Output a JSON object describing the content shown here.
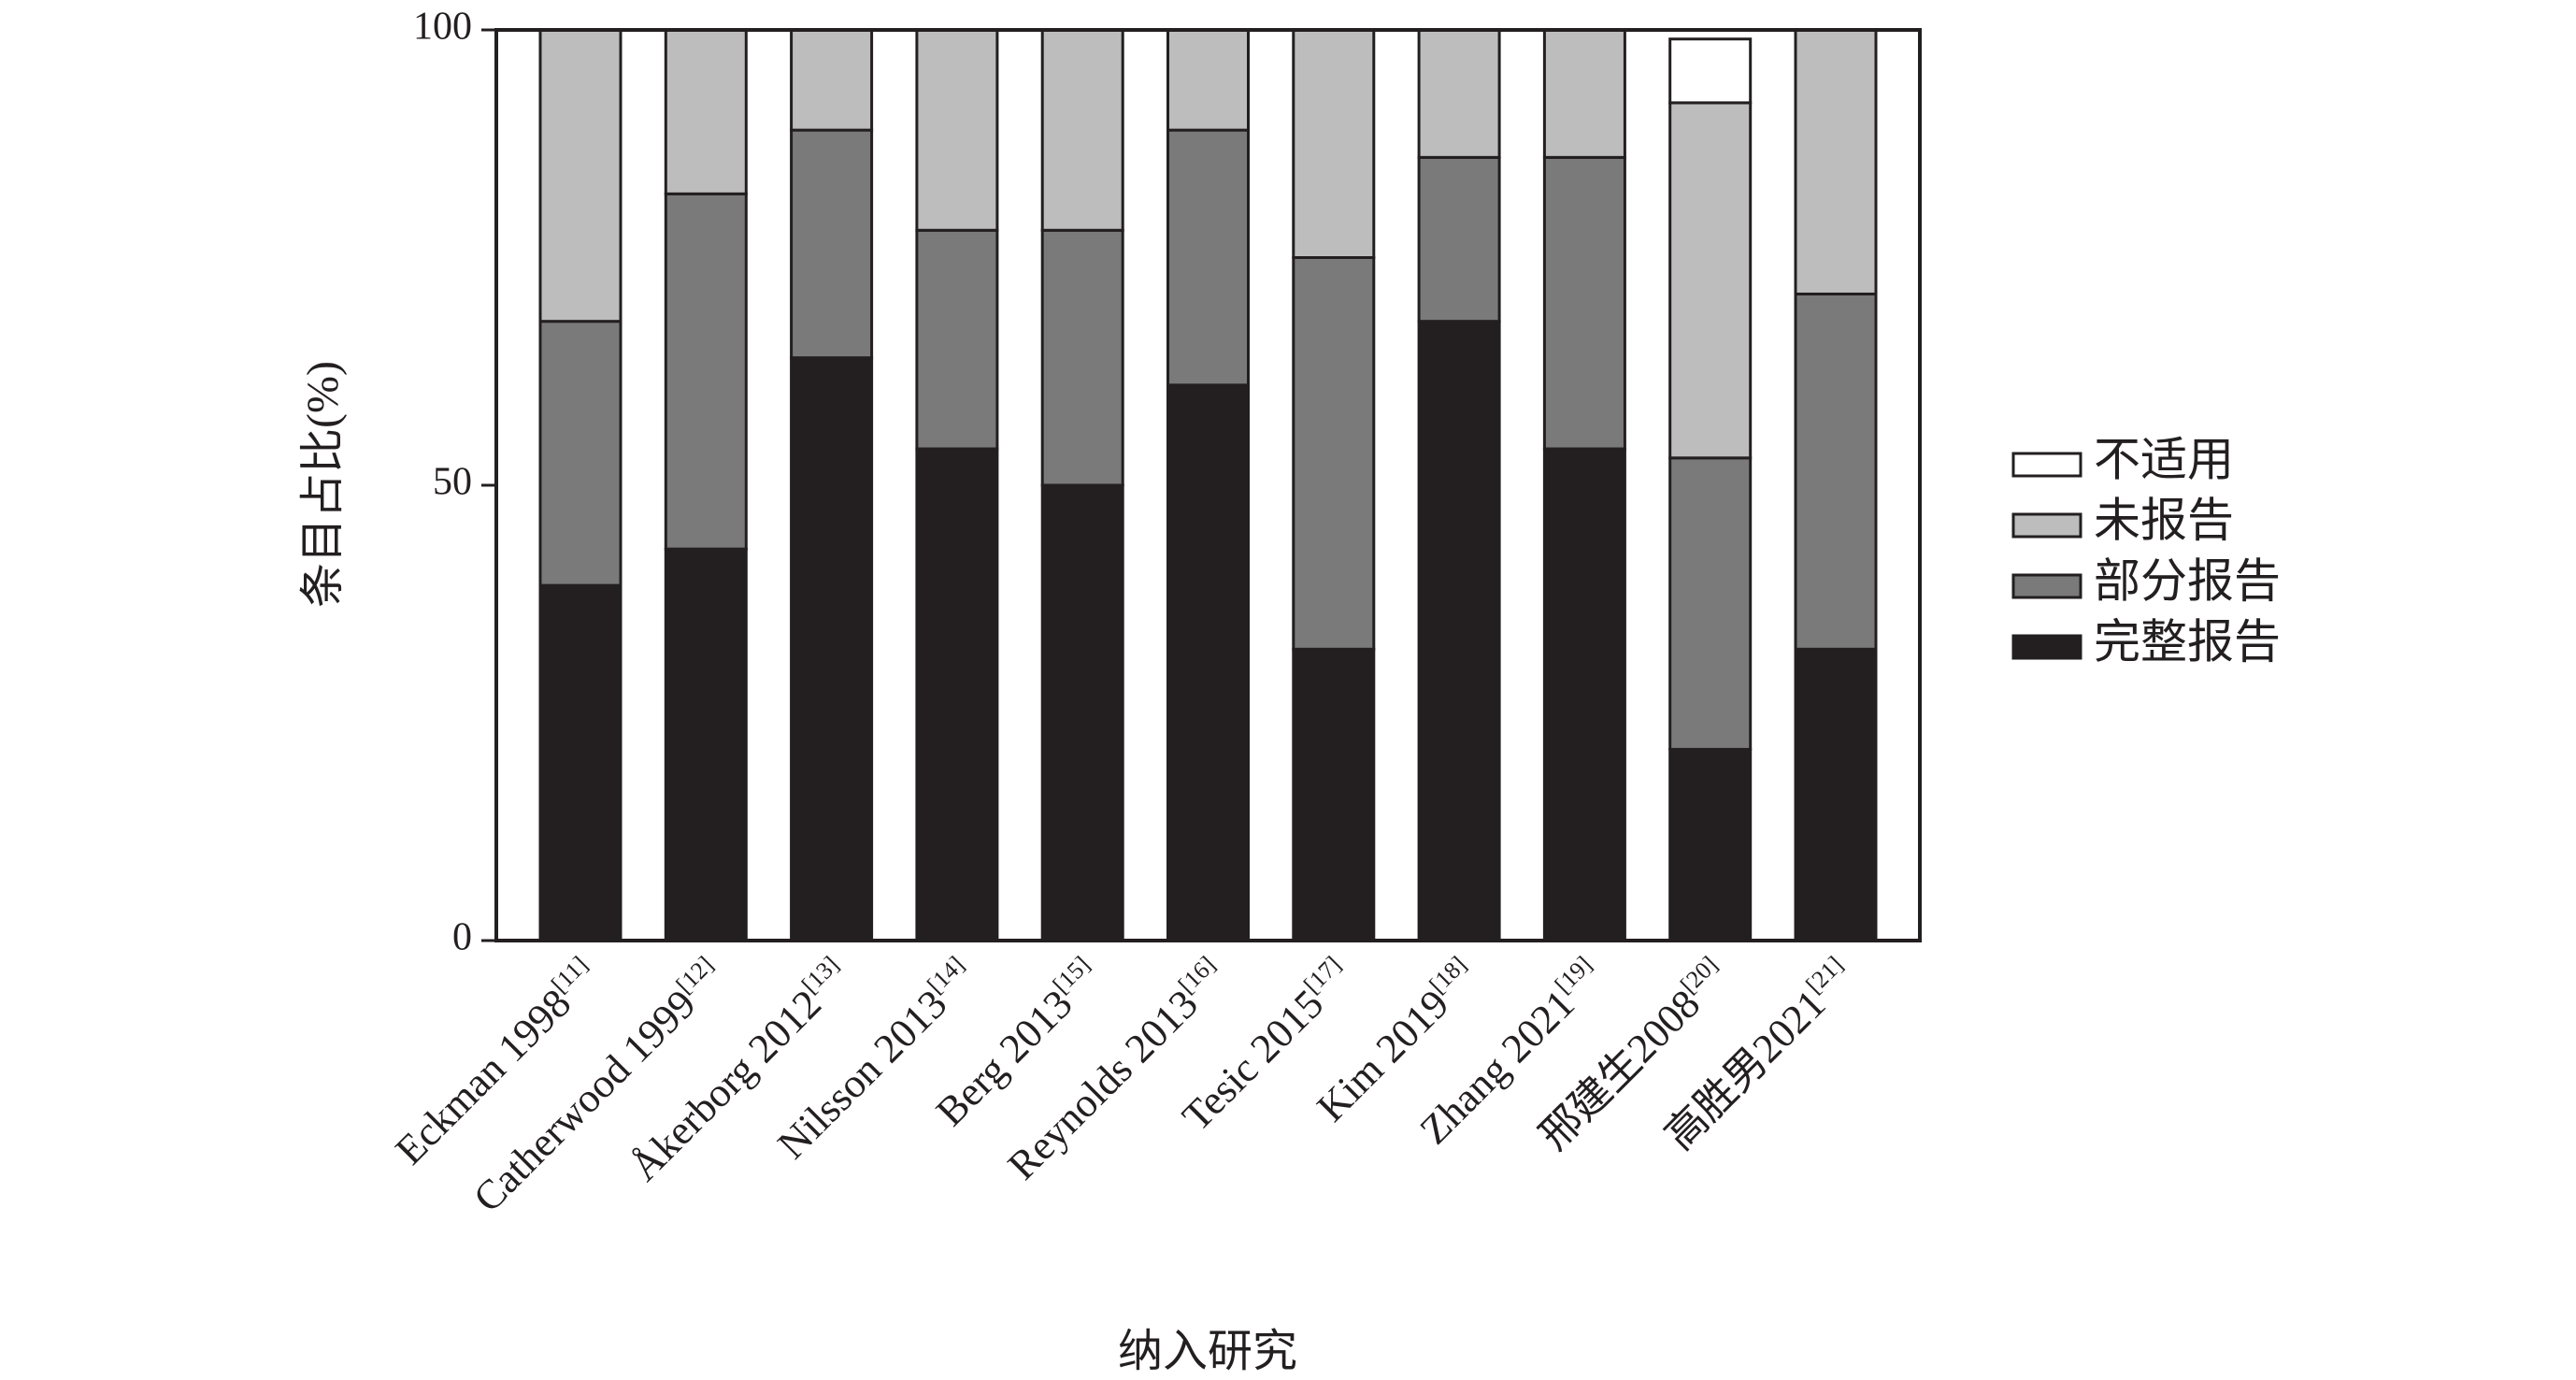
{
  "chart_data": {
    "type": "stacked_bar",
    "y_label": "条目占比(%)",
    "x_label": "纳入研究",
    "categories": [
      "Eckman 1998",
      "Catherwood 1999",
      "Åkerborg 2012",
      "Nilsson 2013",
      "Berg 2013",
      "Reynolds 2013",
      "Tesic 2015",
      "Kim 2019",
      "Zhang 2021",
      "邢建生2008",
      "高胜男2021"
    ],
    "category_refs": [
      "[11]",
      "[12]",
      "[13]",
      "[14]",
      "[15]",
      "[16]",
      "[17]",
      "[18]",
      "[19]",
      "[20]",
      "[21]"
    ],
    "series": [
      {
        "name": "完整报告",
        "color": "#231f20",
        "values": [
          39,
          43,
          64,
          54,
          50,
          61,
          32,
          68,
          54,
          21,
          32
        ]
      },
      {
        "name": "部分报告",
        "color": "#7a7a7a",
        "values": [
          29,
          39,
          25,
          24,
          28,
          28,
          43,
          18,
          32,
          32,
          39
        ]
      },
      {
        "name": "未报告",
        "color": "#bdbdbd",
        "values": [
          32,
          18,
          11,
          22,
          22,
          11,
          25,
          14,
          14,
          39,
          29
        ]
      },
      {
        "name": "不适用",
        "color": "#ffffff",
        "values": [
          0,
          0,
          0,
          0,
          0,
          0,
          0,
          0,
          0,
          7,
          0
        ]
      }
    ],
    "ylim": [
      0,
      100
    ],
    "yticks": [
      0,
      50,
      100
    ],
    "grid": false,
    "legend": "right"
  }
}
